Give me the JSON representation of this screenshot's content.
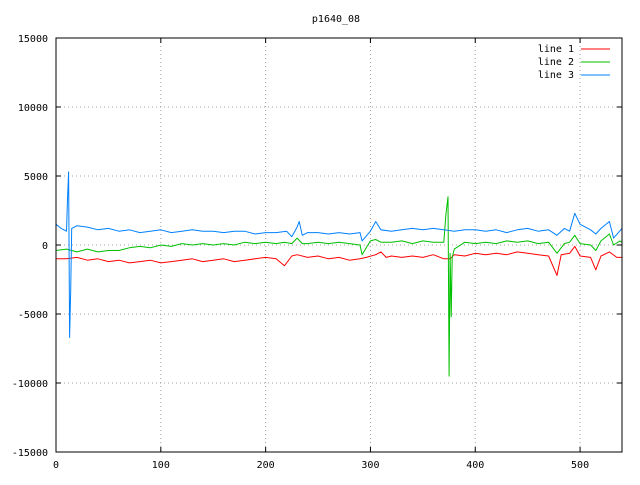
{
  "chart_data": {
    "type": "line",
    "title": "p1640_08",
    "xlabel": "",
    "ylabel": "",
    "xlim": [
      0,
      540
    ],
    "ylim": [
      -15000,
      15000
    ],
    "xticks": [
      0,
      100,
      200,
      300,
      400,
      500
    ],
    "yticks": [
      -15000,
      -10000,
      -5000,
      0,
      5000,
      10000,
      15000
    ],
    "xtick_labels": [
      "0",
      "100",
      "200",
      "300",
      "400",
      "500"
    ],
    "ytick_labels": [
      "-15000",
      "-10000",
      "-5000",
      "0",
      "5000",
      "10000",
      "15000"
    ],
    "grid": true,
    "legend_position": "top-right",
    "series": [
      {
        "name": "line 1",
        "color": "#ff0000",
        "points": [
          [
            0,
            -1000
          ],
          [
            10,
            -1000
          ],
          [
            20,
            -900
          ],
          [
            30,
            -1100
          ],
          [
            40,
            -1000
          ],
          [
            50,
            -1200
          ],
          [
            60,
            -1100
          ],
          [
            70,
            -1300
          ],
          [
            80,
            -1200
          ],
          [
            90,
            -1100
          ],
          [
            100,
            -1300
          ],
          [
            110,
            -1200
          ],
          [
            120,
            -1100
          ],
          [
            130,
            -1000
          ],
          [
            140,
            -1200
          ],
          [
            150,
            -1100
          ],
          [
            160,
            -1000
          ],
          [
            170,
            -1200
          ],
          [
            180,
            -1100
          ],
          [
            190,
            -1000
          ],
          [
            200,
            -900
          ],
          [
            210,
            -1000
          ],
          [
            218,
            -1500
          ],
          [
            225,
            -800
          ],
          [
            230,
            -700
          ],
          [
            240,
            -900
          ],
          [
            250,
            -800
          ],
          [
            260,
            -1000
          ],
          [
            270,
            -900
          ],
          [
            280,
            -1100
          ],
          [
            290,
            -1000
          ],
          [
            296,
            -900
          ],
          [
            305,
            -700
          ],
          [
            310,
            -500
          ],
          [
            315,
            -900
          ],
          [
            320,
            -800
          ],
          [
            330,
            -900
          ],
          [
            340,
            -800
          ],
          [
            350,
            -900
          ],
          [
            360,
            -700
          ],
          [
            370,
            -1000
          ],
          [
            376,
            -1000
          ],
          [
            380,
            -700
          ],
          [
            390,
            -800
          ],
          [
            400,
            -600
          ],
          [
            410,
            -700
          ],
          [
            420,
            -600
          ],
          [
            430,
            -700
          ],
          [
            440,
            -500
          ],
          [
            450,
            -600
          ],
          [
            460,
            -700
          ],
          [
            470,
            -800
          ],
          [
            478,
            -2200
          ],
          [
            482,
            -700
          ],
          [
            490,
            -600
          ],
          [
            495,
            -100
          ],
          [
            500,
            -800
          ],
          [
            510,
            -900
          ],
          [
            515,
            -1800
          ],
          [
            520,
            -800
          ],
          [
            528,
            -500
          ],
          [
            535,
            -900
          ],
          [
            540,
            -900
          ]
        ]
      },
      {
        "name": "line 2",
        "color": "#00c000",
        "points": [
          [
            0,
            -400
          ],
          [
            10,
            -300
          ],
          [
            20,
            -500
          ],
          [
            30,
            -300
          ],
          [
            40,
            -500
          ],
          [
            50,
            -400
          ],
          [
            60,
            -400
          ],
          [
            70,
            -200
          ],
          [
            80,
            -100
          ],
          [
            90,
            -200
          ],
          [
            100,
            0
          ],
          [
            110,
            -100
          ],
          [
            120,
            100
          ],
          [
            130,
            0
          ],
          [
            140,
            100
          ],
          [
            150,
            0
          ],
          [
            160,
            100
          ],
          [
            170,
            0
          ],
          [
            180,
            200
          ],
          [
            190,
            100
          ],
          [
            200,
            200
          ],
          [
            210,
            100
          ],
          [
            218,
            200
          ],
          [
            225,
            100
          ],
          [
            230,
            500
          ],
          [
            235,
            100
          ],
          [
            240,
            100
          ],
          [
            250,
            200
          ],
          [
            260,
            100
          ],
          [
            270,
            200
          ],
          [
            280,
            100
          ],
          [
            290,
            0
          ],
          [
            292,
            -700
          ],
          [
            300,
            300
          ],
          [
            305,
            400
          ],
          [
            310,
            200
          ],
          [
            320,
            200
          ],
          [
            330,
            300
          ],
          [
            340,
            100
          ],
          [
            350,
            300
          ],
          [
            360,
            200
          ],
          [
            370,
            200
          ],
          [
            372,
            2200
          ],
          [
            374,
            3500
          ],
          [
            375,
            -9500
          ],
          [
            376,
            -600
          ],
          [
            377,
            -5200
          ],
          [
            378,
            -900
          ],
          [
            380,
            -300
          ],
          [
            390,
            200
          ],
          [
            400,
            100
          ],
          [
            410,
            200
          ],
          [
            420,
            100
          ],
          [
            430,
            300
          ],
          [
            440,
            200
          ],
          [
            450,
            300
          ],
          [
            460,
            100
          ],
          [
            470,
            200
          ],
          [
            478,
            -600
          ],
          [
            485,
            100
          ],
          [
            490,
            200
          ],
          [
            495,
            700
          ],
          [
            500,
            100
          ],
          [
            510,
            0
          ],
          [
            515,
            -400
          ],
          [
            520,
            300
          ],
          [
            528,
            800
          ],
          [
            532,
            0
          ],
          [
            538,
            300
          ],
          [
            540,
            200
          ]
        ]
      },
      {
        "name": "line 3",
        "color": "#0080ff",
        "points": [
          [
            0,
            1500
          ],
          [
            5,
            1200
          ],
          [
            10,
            1000
          ],
          [
            11,
            3300
          ],
          [
            12,
            5300
          ],
          [
            13,
            -6700
          ],
          [
            14,
            -3300
          ],
          [
            15,
            1200
          ],
          [
            20,
            1400
          ],
          [
            30,
            1300
          ],
          [
            40,
            1100
          ],
          [
            50,
            1200
          ],
          [
            60,
            1000
          ],
          [
            70,
            1100
          ],
          [
            80,
            900
          ],
          [
            90,
            1000
          ],
          [
            100,
            1100
          ],
          [
            110,
            900
          ],
          [
            120,
            1000
          ],
          [
            130,
            1100
          ],
          [
            140,
            1000
          ],
          [
            150,
            1000
          ],
          [
            160,
            900
          ],
          [
            170,
            1000
          ],
          [
            180,
            1000
          ],
          [
            190,
            800
          ],
          [
            200,
            900
          ],
          [
            210,
            900
          ],
          [
            220,
            1000
          ],
          [
            225,
            600
          ],
          [
            230,
            1300
          ],
          [
            232,
            1700
          ],
          [
            235,
            700
          ],
          [
            240,
            900
          ],
          [
            250,
            900
          ],
          [
            260,
            800
          ],
          [
            270,
            900
          ],
          [
            280,
            800
          ],
          [
            290,
            900
          ],
          [
            292,
            300
          ],
          [
            300,
            1000
          ],
          [
            305,
            1700
          ],
          [
            310,
            1100
          ],
          [
            320,
            1000
          ],
          [
            330,
            1100
          ],
          [
            340,
            1200
          ],
          [
            350,
            1100
          ],
          [
            360,
            1200
          ],
          [
            370,
            1100
          ],
          [
            380,
            1000
          ],
          [
            390,
            1100
          ],
          [
            400,
            1100
          ],
          [
            410,
            1000
          ],
          [
            420,
            1100
          ],
          [
            430,
            900
          ],
          [
            440,
            1100
          ],
          [
            450,
            1200
          ],
          [
            460,
            1000
          ],
          [
            470,
            1100
          ],
          [
            478,
            700
          ],
          [
            485,
            1200
          ],
          [
            490,
            1000
          ],
          [
            495,
            2300
          ],
          [
            500,
            1500
          ],
          [
            510,
            1100
          ],
          [
            515,
            800
          ],
          [
            520,
            1200
          ],
          [
            528,
            1700
          ],
          [
            532,
            500
          ],
          [
            540,
            1200
          ]
        ]
      }
    ]
  }
}
